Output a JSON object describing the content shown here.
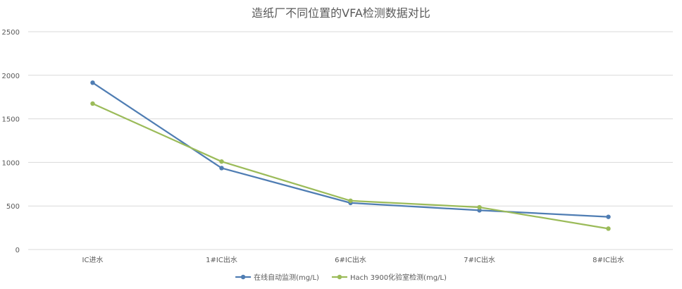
{
  "chart_data": {
    "type": "line",
    "title": "造纸厂不同位置的VFA检测数据对比",
    "categories": [
      "IC进水",
      "1#IC出水",
      "6#IC出水",
      "7#IC出水",
      "8#IC出水"
    ],
    "series": [
      {
        "name": "在线自动监测(mg/L)",
        "color": "#4f7db3",
        "values": [
          1915,
          935,
          535,
          450,
          375
        ]
      },
      {
        "name": "Hach 3900化验室检测(mg/L)",
        "color": "#9bbb59",
        "values": [
          1675,
          1010,
          560,
          485,
          240
        ]
      }
    ],
    "ylim": [
      0,
      2500
    ],
    "yticks": [
      0,
      500,
      1000,
      1500,
      2000,
      2500
    ],
    "xlabel": "",
    "ylabel": "",
    "grid": true,
    "legend": "bottom"
  }
}
